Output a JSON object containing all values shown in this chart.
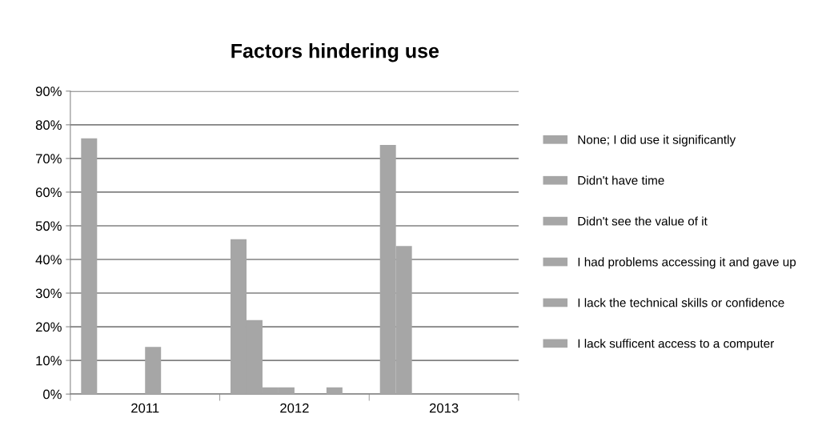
{
  "chart_data": {
    "type": "bar",
    "title": "Factors hindering use",
    "categories": [
      "2011",
      "2012",
      "2013"
    ],
    "series": [
      {
        "name": "None; I did use it significantly",
        "color": "#a6a6a6",
        "values": [
          76,
          46,
          74
        ]
      },
      {
        "name": "Didn't have time",
        "color": "#a6a6a6",
        "values": [
          0,
          22,
          44
        ]
      },
      {
        "name": "Didn't see the value of it",
        "color": "#a6a6a6",
        "values": [
          0,
          2,
          0
        ]
      },
      {
        "name": "I had problems accessing it and gave up",
        "color": "#a6a6a6",
        "values": [
          0,
          2,
          0
        ]
      },
      {
        "name": "I lack the technical skills or confidence",
        "color": "#a6a6a6",
        "values": [
          14,
          0,
          0
        ]
      },
      {
        "name": "I lack sufficent access to a computer",
        "color": "#a6a6a6",
        "values": [
          0,
          0,
          0
        ]
      },
      {
        "color": "#a6a6a6",
        "values": [
          0,
          2,
          0
        ]
      },
      {
        "color": "#a6a6a6",
        "values": [
          0,
          0,
          0
        ]
      }
    ],
    "ylim": [
      0,
      90
    ],
    "yticks": [
      {
        "value": 0,
        "label": "0%"
      },
      {
        "value": 10,
        "label": "10%"
      },
      {
        "value": 20,
        "label": "20%"
      },
      {
        "value": 30,
        "label": "30%"
      },
      {
        "value": 40,
        "label": "40%"
      },
      {
        "value": 50,
        "label": "50%"
      },
      {
        "value": 60,
        "label": "60%"
      },
      {
        "value": 70,
        "label": "70%"
      },
      {
        "value": 80,
        "label": "80%"
      },
      {
        "value": 90,
        "label": "90%"
      }
    ],
    "grid": "y",
    "legend": "right"
  }
}
